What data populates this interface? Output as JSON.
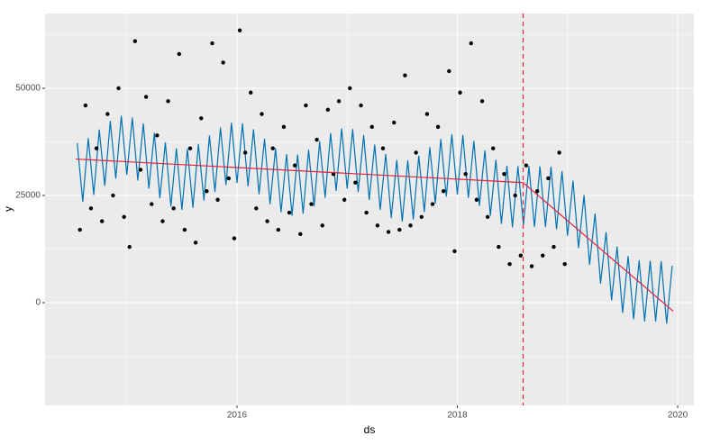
{
  "chart_data": {
    "type": "line",
    "x_label": "ds",
    "y_label": "y",
    "xlim": [
      2014.258,
      2020.147
    ],
    "xticks": [
      2016,
      2018,
      2020
    ],
    "ylim": [
      -23950,
      67437
    ],
    "yticks": [
      0,
      25000,
      50000
    ],
    "grid": true,
    "background": "#ebebeb",
    "series": [
      {
        "mark": "point",
        "color": "#000000",
        "x": [
          2014.575,
          2014.625,
          2014.675,
          2014.725,
          2014.775,
          2014.825,
          2014.875,
          2014.925,
          2014.975,
          2015.025,
          2015.075,
          2015.125,
          2015.175,
          2015.225,
          2015.275,
          2015.325,
          2015.375,
          2015.425,
          2015.475,
          2015.525,
          2015.575,
          2015.625,
          2015.675,
          2015.725,
          2015.775,
          2015.825,
          2015.875,
          2015.925,
          2015.975,
          2016.025,
          2016.075,
          2016.125,
          2016.175,
          2016.225,
          2016.275,
          2016.325,
          2016.375,
          2016.425,
          2016.475,
          2016.525,
          2016.575,
          2016.625,
          2016.675,
          2016.725,
          2016.775,
          2016.825,
          2016.875,
          2016.925,
          2016.975,
          2017.025,
          2017.075,
          2017.125,
          2017.175,
          2017.225,
          2017.275,
          2017.325,
          2017.375,
          2017.425,
          2017.475,
          2017.525,
          2017.575,
          2017.625,
          2017.675,
          2017.725,
          2017.775,
          2017.825,
          2017.875,
          2017.925,
          2017.975,
          2018.025,
          2018.075,
          2018.125,
          2018.175,
          2018.225,
          2018.275,
          2018.325,
          2018.375,
          2018.425,
          2018.475,
          2018.525,
          2018.575,
          2018.625,
          2018.675,
          2018.725,
          2018.775,
          2018.825,
          2018.875,
          2018.925,
          2018.975
        ],
        "values": [
          17000,
          46000,
          22000,
          36000,
          19000,
          44000,
          25000,
          50000,
          20000,
          13000,
          61000,
          31000,
          48000,
          23000,
          39000,
          19000,
          47000,
          22000,
          58000,
          17000,
          36000,
          14000,
          43000,
          26000,
          60500,
          24000,
          56000,
          29000,
          15000,
          63500,
          35000,
          49000,
          22000,
          44000,
          19000,
          36000,
          17000,
          41000,
          21000,
          32000,
          16000,
          46000,
          23000,
          38000,
          18000,
          45000,
          30000,
          47000,
          24000,
          50000,
          28000,
          46000,
          21000,
          41000,
          18000,
          36000,
          16500,
          42000,
          17000,
          53000,
          18000,
          35000,
          20000,
          44000,
          23000,
          41000,
          26000,
          54000,
          12000,
          49000,
          30000,
          60500,
          24000,
          47000,
          20000,
          36000,
          13000,
          30000,
          9000,
          25000,
          11000,
          32000,
          8500,
          26000,
          11000,
          29000,
          13000,
          35000,
          9000
        ]
      },
      {
        "mark": "line",
        "color": "#0072b2",
        "x": [
          2014.55,
          2014.6,
          2014.65,
          2014.7,
          2014.75,
          2014.8,
          2014.85,
          2014.9,
          2014.95,
          2015.0,
          2015.05,
          2015.1,
          2015.15,
          2015.2,
          2015.25,
          2015.3,
          2015.35,
          2015.4,
          2015.45,
          2015.5,
          2015.55,
          2015.6,
          2015.65,
          2015.7,
          2015.75,
          2015.8,
          2015.85,
          2015.9,
          2015.95,
          2016.0,
          2016.05,
          2016.1,
          2016.15,
          2016.2,
          2016.25,
          2016.3,
          2016.35,
          2016.4,
          2016.45,
          2016.5,
          2016.55,
          2016.6,
          2016.65,
          2016.7,
          2016.75,
          2016.8,
          2016.85,
          2016.9,
          2016.95,
          2017.0,
          2017.05,
          2017.1,
          2017.15,
          2017.2,
          2017.25,
          2017.3,
          2017.35,
          2017.4,
          2017.45,
          2017.5,
          2017.55,
          2017.6,
          2017.65,
          2017.7,
          2017.75,
          2017.8,
          2017.85,
          2017.9,
          2017.95,
          2018.0,
          2018.05,
          2018.1,
          2018.15,
          2018.2,
          2018.25,
          2018.3,
          2018.35,
          2018.4,
          2018.45,
          2018.5,
          2018.55,
          2018.6,
          2018.65,
          2018.7,
          2018.75,
          2018.8,
          2018.85,
          2018.9,
          2018.95,
          2019.0,
          2019.05,
          2019.1,
          2019.15,
          2019.2,
          2019.25,
          2019.3,
          2019.35,
          2019.4,
          2019.45,
          2019.5,
          2019.55,
          2019.6,
          2019.65,
          2019.7,
          2019.75,
          2019.8,
          2019.85,
          2019.9,
          2019.95
        ],
        "values": [
          37200,
          23600,
          38300,
          25200,
          40300,
          27300,
          42300,
          29000,
          43500,
          29900,
          43100,
          28570,
          41700,
          26700,
          39500,
          24400,
          37300,
          22500,
          35900,
          21700,
          35800,
          22200,
          36900,
          23900,
          38900,
          25900,
          40800,
          27500,
          41900,
          28000,
          41750,
          27220,
          40350,
          25350,
          38150,
          23050,
          35950,
          21150,
          34550,
          20350,
          34450,
          20850,
          35550,
          22550,
          37550,
          24550,
          39450,
          26150,
          40550,
          26650,
          40400,
          25870,
          39000,
          24000,
          36800,
          21700,
          34600,
          19800,
          33200,
          19000,
          33100,
          19500,
          34200,
          21200,
          36200,
          23200,
          38100,
          24800,
          39200,
          25300,
          39050,
          24520,
          37650,
          22650,
          35450,
          20350,
          33250,
          18450,
          31850,
          17650,
          31750,
          18200,
          31800,
          17700,
          31700,
          17700,
          31600,
          17200,
          30600,
          15700,
          28400,
          12800,
          25000,
          8900,
          20700,
          4500,
          16400,
          600,
          13000,
          -2300,
          10800,
          -3800,
          9800,
          -4300,
          9700,
          -4300,
          9600,
          -4800,
          8600
        ]
      },
      {
        "mark": "line",
        "color": "#e8213c",
        "x": [
          2014.536,
          2018.597,
          2019.96
        ],
        "values": [
          33500,
          28000,
          -2000
        ]
      }
    ],
    "vlines": [
      {
        "x": 2018.597,
        "color": "#e8213c",
        "dash": true
      }
    ]
  }
}
